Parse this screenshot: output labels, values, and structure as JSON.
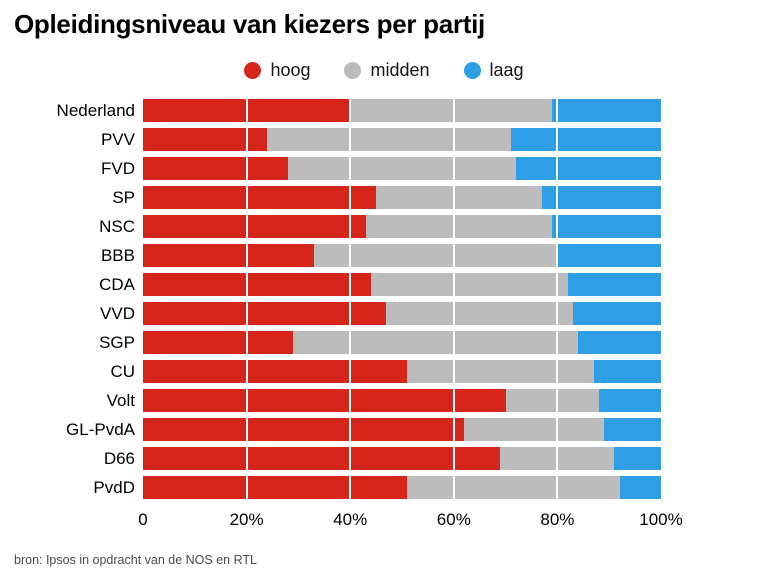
{
  "title": "Opleidingsniveau van kiezers per partij",
  "source": "bron: Ipsos in opdracht van de NOS en RTL",
  "chart_data": {
    "type": "bar",
    "orientation": "horizontal",
    "stacked": true,
    "title": "Opleidingsniveau van kiezers per partij",
    "xlabel": "",
    "ylabel": "",
    "xlim": [
      0,
      100
    ],
    "legend_position": "top",
    "grid": "vertical-white-overlay",
    "categories": [
      "Nederland",
      "PVV",
      "FVD",
      "SP",
      "NSC",
      "BBB",
      "CDA",
      "VVD",
      "SGP",
      "CU",
      "Volt",
      "GL-PvdA",
      "D66",
      "PvdD"
    ],
    "series": [
      {
        "name": "hoog",
        "color": "#d6251a",
        "values": [
          40,
          24,
          28,
          45,
          43,
          33,
          44,
          47,
          29,
          51,
          70,
          62,
          69,
          51
        ]
      },
      {
        "name": "midden",
        "color": "#bcbcbc",
        "values": [
          39,
          47,
          44,
          32,
          36,
          47,
          38,
          36,
          55,
          36,
          18,
          27,
          22,
          41
        ]
      },
      {
        "name": "laag",
        "color": "#2e9fe6",
        "values": [
          21,
          29,
          28,
          23,
          21,
          20,
          18,
          17,
          16,
          13,
          12,
          11,
          9,
          8
        ]
      }
    ],
    "x_ticks": [
      {
        "label": "0",
        "value": 0
      },
      {
        "label": "20%",
        "value": 20
      },
      {
        "label": "40%",
        "value": 40
      },
      {
        "label": "60%",
        "value": 60
      },
      {
        "label": "80%",
        "value": 80
      },
      {
        "label": "100%",
        "value": 100
      }
    ],
    "gridline_values": [
      20,
      40,
      60,
      80
    ]
  }
}
